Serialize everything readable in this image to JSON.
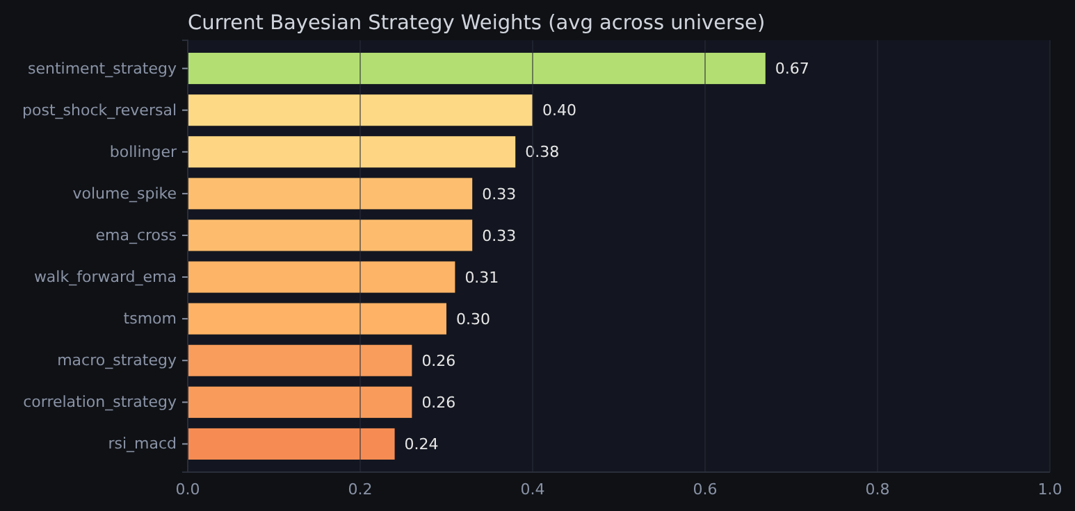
{
  "chart_data": {
    "type": "bar",
    "orientation": "horizontal",
    "title": "Current Bayesian Strategy Weights (avg across universe)",
    "categories": [
      "sentiment_strategy",
      "post_shock_reversal",
      "bollinger",
      "volume_spike",
      "ema_cross",
      "walk_forward_ema",
      "tsmom",
      "macro_strategy",
      "correlation_strategy",
      "rsi_macd"
    ],
    "values": [
      0.67,
      0.4,
      0.38,
      0.33,
      0.33,
      0.31,
      0.3,
      0.26,
      0.26,
      0.24
    ],
    "colors": [
      "#b3df72",
      "#fed985",
      "#fed683",
      "#fdbf6f",
      "#fdbc6d",
      "#fdb466",
      "#fdb265",
      "#f99d5c",
      "#f99c5b",
      "#f68c53"
    ],
    "xlim": [
      0,
      1
    ],
    "xticks": [
      {
        "value": 0,
        "label": "0.0"
      },
      {
        "value": 0.2,
        "label": "0.2"
      },
      {
        "value": 0.4,
        "label": "0.4"
      },
      {
        "value": 0.6,
        "label": "0.6"
      },
      {
        "value": 0.8,
        "label": "0.8"
      },
      {
        "value": 1,
        "label": "1.0"
      }
    ],
    "value_labels": [
      "0.67",
      "0.40",
      "0.38",
      "0.33",
      "0.33",
      "0.31",
      "0.30",
      "0.26",
      "0.26",
      "0.24"
    ],
    "grid": "x"
  }
}
